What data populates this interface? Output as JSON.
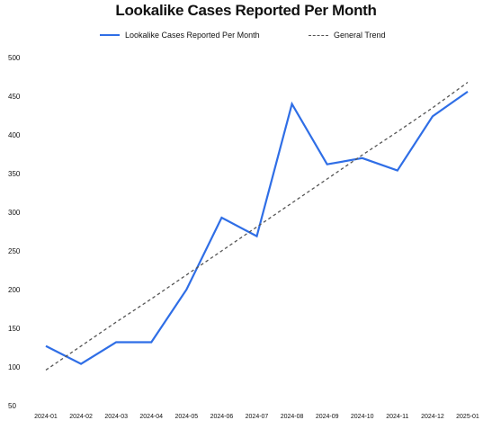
{
  "chart_data": {
    "type": "line",
    "title": "Lookalike Cases Reported Per Month",
    "categories": [
      "2024-01",
      "2024-02",
      "2024-03",
      "2024-04",
      "2024-05",
      "2024-06",
      "2024-07",
      "2024-08",
      "2024-09",
      "2024-10",
      "2024-11",
      "2024-12",
      "2025-01"
    ],
    "series": [
      {
        "name": "Lookalike Cases Reported Per Month",
        "values": [
          127,
          104,
          132,
          132,
          200,
          293,
          269,
          440,
          362,
          370,
          354,
          424,
          456
        ],
        "color": "#2f6ee6",
        "style": "solid"
      },
      {
        "name": "General Trend",
        "values": [
          96,
          127,
          158,
          188,
          219,
          250,
          281,
          312,
          343,
          374,
          404,
          435,
          468
        ],
        "color": "#555555",
        "style": "dashed"
      }
    ],
    "yticks": [
      50,
      100,
      150,
      200,
      250,
      300,
      350,
      400,
      450,
      500
    ],
    "ylim": [
      50,
      500
    ],
    "xlabel": "",
    "ylabel": "",
    "grid": false,
    "legend_position": "top"
  }
}
